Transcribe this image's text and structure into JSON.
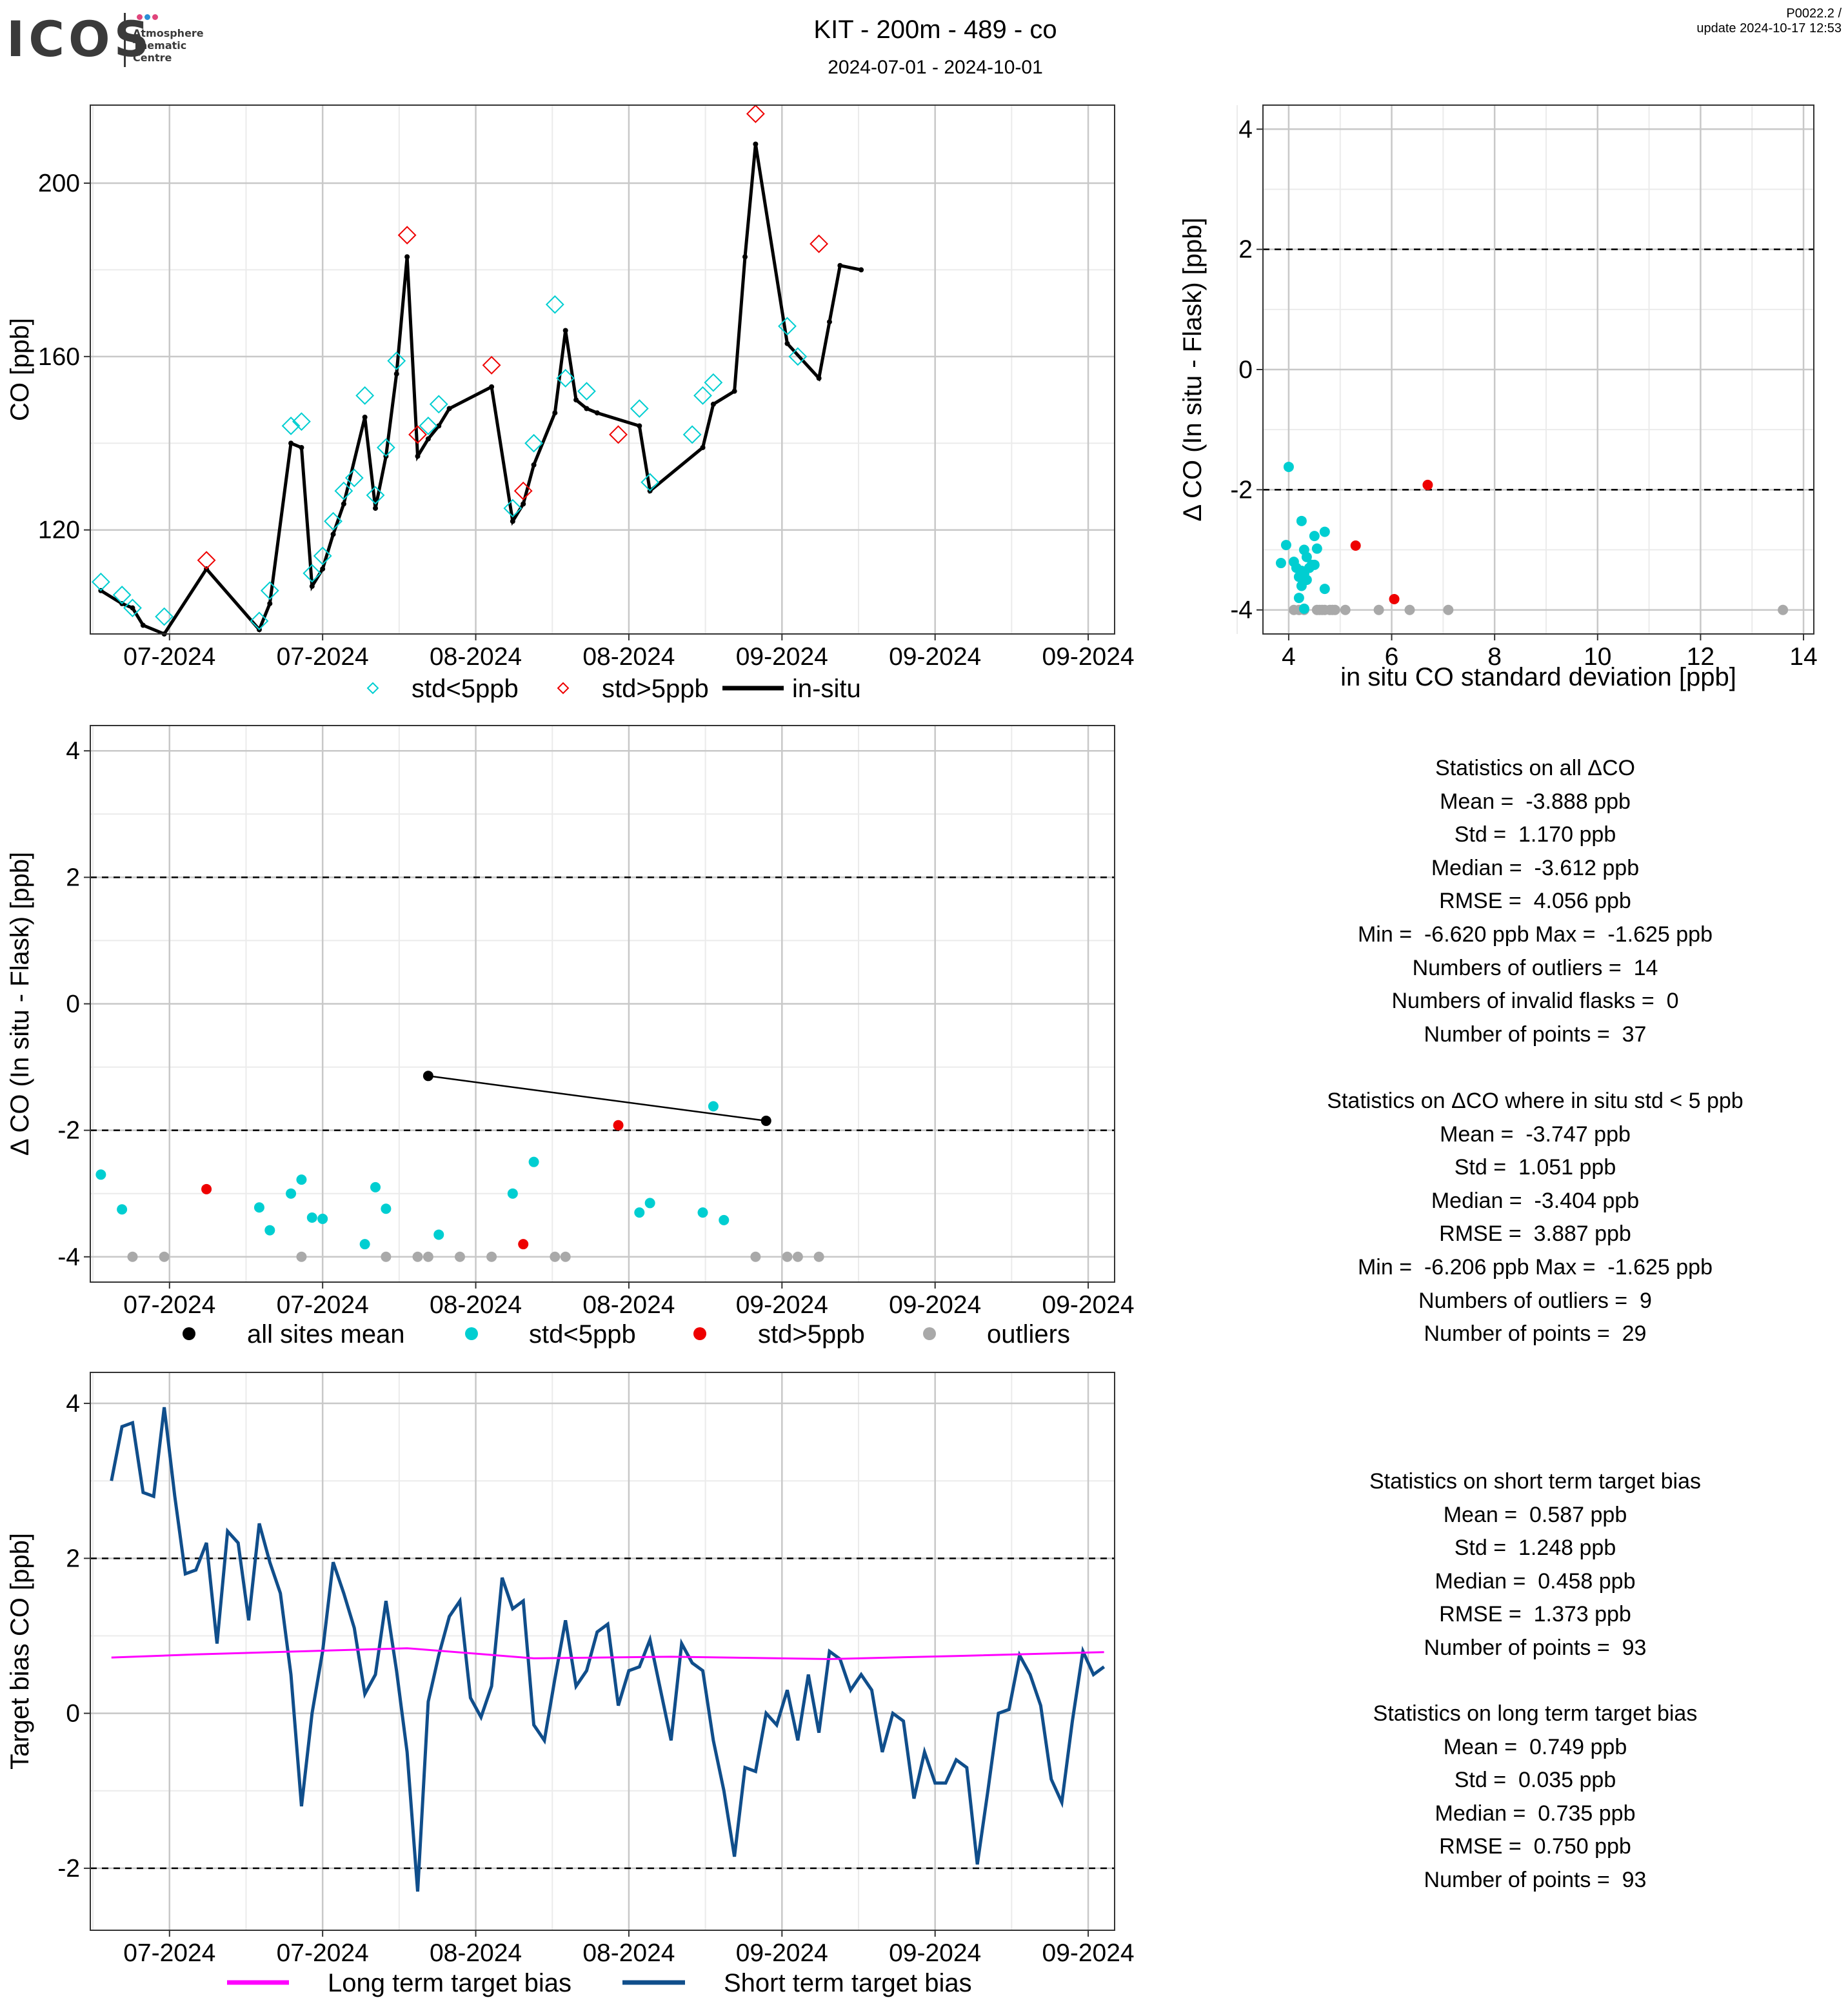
{
  "header": {
    "logo_text": "ICOS",
    "logo_subtitle": [
      "Atmosphere",
      "Thematic",
      "Centre"
    ],
    "title": "KIT - 200m - 489 - co",
    "subtitle": "2024-07-01 - 2024-10-01",
    "version": "P0022.2 /",
    "update": "update  2024-10-17 12:53"
  },
  "colors": {
    "cyan": "#00CED1",
    "red": "#EE0000",
    "grey": "#A9A9A9",
    "black": "#000000",
    "magenta": "#FF00FF",
    "navy": "#104E8B",
    "grid_major": "#c8c8c8",
    "grid_minor": "#ebebeb"
  },
  "chart_data": [
    {
      "id": "co_timeseries",
      "type": "line",
      "ylabel": "CO [ppb]",
      "x_ticks": [
        "07-2024",
        "07-2024",
        "08-2024",
        "08-2024",
        "09-2024",
        "09-2024",
        "09-2024"
      ],
      "x_tick_positions": [
        7.5,
        22,
        36.5,
        51,
        65.5,
        80,
        94.5
      ],
      "xlim": [
        0,
        97
      ],
      "ylim": [
        96,
        218
      ],
      "y_ticks": [
        120,
        160,
        200
      ],
      "legend": [
        "std<5ppb",
        "std>5ppb",
        "in-situ"
      ],
      "series": [
        {
          "name": "in-situ",
          "x": [
            1,
            3,
            4,
            5,
            7,
            11,
            16,
            17,
            19,
            20,
            21,
            22,
            23,
            24,
            26,
            27,
            28,
            29,
            30,
            31,
            32,
            33,
            34,
            38,
            40,
            41,
            42,
            44,
            45,
            46,
            47,
            48,
            52,
            53,
            58,
            59,
            61,
            62,
            63,
            66,
            69,
            70,
            71,
            73
          ],
          "y": [
            106,
            103,
            102,
            98,
            96,
            111,
            97,
            103,
            140,
            139,
            107,
            111,
            119,
            126,
            146,
            125,
            137,
            156,
            183,
            137,
            141,
            144,
            148,
            153,
            122,
            126,
            135,
            147,
            166,
            150,
            148,
            147,
            144,
            129,
            139,
            149,
            152,
            183,
            209,
            163,
            155,
            168,
            181,
            180
          ]
        },
        {
          "name": "std<5ppb",
          "x": [
            1,
            3,
            4,
            7,
            16,
            17,
            19,
            20,
            21,
            22,
            23,
            24,
            25,
            26,
            27,
            28,
            29,
            32,
            33,
            40,
            42,
            44,
            45,
            47,
            52,
            53,
            57,
            58,
            59,
            66,
            67
          ],
          "y": [
            108,
            105,
            102,
            100,
            99,
            106,
            144,
            145,
            110,
            114,
            122,
            129,
            132,
            151,
            128,
            139,
            159,
            144,
            149,
            125,
            140,
            172,
            155,
            152,
            148,
            131,
            142,
            151,
            154,
            167,
            160
          ]
        },
        {
          "name": "std>5ppb",
          "x": [
            11,
            30,
            31,
            38,
            41,
            50,
            63,
            69
          ],
          "y": [
            113,
            188,
            142,
            158,
            129,
            142,
            216,
            186
          ]
        }
      ]
    },
    {
      "id": "delta_vs_std_scatter",
      "type": "scatter",
      "xlabel": "in situ CO standard deviation [ppb]",
      "ylabel": "Δ CO (In situ - Flask) [ppb]",
      "xlim": [
        3.5,
        14.2
      ],
      "ylim": [
        -4.4,
        4.4
      ],
      "x_ticks": [
        4,
        6,
        8,
        10,
        12,
        14
      ],
      "y_ticks": [
        -4,
        -2,
        0,
        2,
        4
      ],
      "hlines": [
        -2,
        2
      ],
      "series": [
        {
          "name": "std<5ppb",
          "x": [
            4.0,
            4.25,
            4.5,
            4.7,
            3.95,
            4.55,
            4.3,
            4.1,
            4.35,
            4.45,
            3.85,
            4.15,
            4.25,
            4.3,
            4.4,
            4.5,
            4.2,
            4.35,
            4.7,
            4.25,
            4.2,
            4.3
          ],
          "y": [
            -1.62,
            -2.52,
            -2.77,
            -2.7,
            -2.92,
            -2.98,
            -3.0,
            -3.2,
            -3.12,
            -3.25,
            -3.22,
            -3.3,
            -3.35,
            -3.4,
            -3.3,
            -3.25,
            -3.45,
            -3.5,
            -3.65,
            -3.6,
            -3.8,
            -3.98
          ]
        },
        {
          "name": "std>5ppb",
          "x": [
            6.7,
            5.3,
            6.05
          ],
          "y": [
            -1.92,
            -2.93,
            -3.82
          ]
        },
        {
          "name": "outliers",
          "x": [
            4.1,
            4.2,
            4.3,
            4.55,
            4.6,
            4.65,
            4.7,
            4.8,
            4.85,
            4.9,
            5.1,
            5.75,
            6.35,
            7.1,
            13.6
          ],
          "y": [
            -4,
            -4,
            -4,
            -4,
            -4,
            -4,
            -4,
            -4,
            -4,
            -4,
            -4,
            -4,
            -4,
            -4,
            -4
          ]
        }
      ]
    },
    {
      "id": "delta_timeseries",
      "type": "scatter",
      "ylabel": "Δ CO (In situ - Flask) [ppb]",
      "x_ticks": [
        "07-2024",
        "07-2024",
        "08-2024",
        "08-2024",
        "09-2024",
        "09-2024",
        "09-2024"
      ],
      "x_tick_positions": [
        7.5,
        22,
        36.5,
        51,
        65.5,
        80,
        94.5
      ],
      "xlim": [
        0,
        97
      ],
      "ylim": [
        -4.4,
        4.4
      ],
      "y_ticks": [
        -4,
        -2,
        0,
        2,
        4
      ],
      "hlines": [
        -2,
        2
      ],
      "legend": [
        "all sites mean",
        "std<5ppb",
        "std>5ppb",
        "outliers"
      ],
      "series": [
        {
          "name": "all sites mean",
          "x": [
            32,
            64
          ],
          "y": [
            -1.14,
            -1.85
          ]
        },
        {
          "name": "std<5ppb",
          "x": [
            1,
            3,
            16,
            17,
            19,
            20,
            21,
            22,
            26,
            27,
            28,
            33,
            40,
            42,
            52,
            53,
            58,
            59,
            60
          ],
          "y": [
            -2.7,
            -3.25,
            -3.22,
            -3.58,
            -3.0,
            -2.78,
            -3.38,
            -3.4,
            -3.8,
            -2.9,
            -3.24,
            -3.65,
            -3.0,
            -2.5,
            -3.3,
            -3.15,
            -3.3,
            -1.62,
            -3.42
          ]
        },
        {
          "name": "std>5ppb",
          "x": [
            11,
            41,
            50
          ],
          "y": [
            -2.93,
            -3.8,
            -1.92
          ]
        },
        {
          "name": "outliers",
          "x": [
            4,
            7,
            20,
            28,
            31,
            32,
            35,
            38,
            44,
            45,
            63,
            66,
            67,
            69
          ],
          "y": [
            -4,
            -4,
            -4,
            -4,
            -4,
            -4,
            -4,
            -4,
            -4,
            -4,
            -4,
            -4,
            -4,
            -4
          ]
        }
      ]
    },
    {
      "id": "target_bias",
      "type": "line",
      "ylabel": "Target bias CO [ppb]",
      "x_ticks": [
        "07-2024",
        "07-2024",
        "08-2024",
        "08-2024",
        "09-2024",
        "09-2024",
        "09-2024"
      ],
      "x_tick_positions": [
        7.5,
        22,
        36.5,
        51,
        65.5,
        80,
        94.5
      ],
      "xlim": [
        0,
        97
      ],
      "ylim": [
        -2.8,
        4.4
      ],
      "y_ticks": [
        -2,
        0,
        2,
        4
      ],
      "hlines": [
        -2,
        2
      ],
      "legend": [
        "Long term target bias",
        "Short term target bias"
      ],
      "series": [
        {
          "name": "Long term target bias",
          "x": [
            2,
            10,
            20,
            30,
            42,
            55,
            70,
            82,
            96
          ],
          "y": [
            0.72,
            0.76,
            0.8,
            0.84,
            0.71,
            0.73,
            0.7,
            0.74,
            0.79
          ]
        },
        {
          "name": "Short term target bias",
          "x": [
            2,
            3,
            4,
            5,
            6,
            7,
            8,
            9,
            10,
            11,
            12,
            13,
            14,
            15,
            16,
            17,
            18,
            19,
            20,
            21,
            22,
            23,
            24,
            25,
            26,
            27,
            28,
            29,
            30,
            31,
            32,
            33,
            34,
            35,
            36,
            37,
            38,
            39,
            40,
            41,
            42,
            43,
            44,
            45,
            46,
            47,
            48,
            49,
            50,
            51,
            52,
            53,
            54,
            55,
            56,
            57,
            58,
            59,
            60,
            61,
            62,
            63,
            64,
            65,
            66,
            67,
            68,
            69,
            70,
            71,
            72,
            73,
            74,
            75,
            76,
            77,
            78,
            79,
            80,
            81,
            82,
            83,
            84,
            85,
            86,
            87,
            88,
            89,
            90,
            91,
            92,
            93,
            94,
            95,
            96
          ],
          "y": [
            3.0,
            3.7,
            3.75,
            2.85,
            2.8,
            3.95,
            2.8,
            1.8,
            1.85,
            2.2,
            0.9,
            2.35,
            2.2,
            1.2,
            2.45,
            1.95,
            1.55,
            0.5,
            -1.2,
            0.0,
            0.8,
            1.95,
            1.55,
            1.1,
            0.25,
            0.5,
            1.45,
            0.55,
            -0.5,
            -2.3,
            0.15,
            0.75,
            1.25,
            1.45,
            0.2,
            -0.05,
            0.35,
            1.75,
            1.35,
            1.45,
            -0.15,
            -0.35,
            0.45,
            1.2,
            0.35,
            0.55,
            1.05,
            1.15,
            0.1,
            0.55,
            0.6,
            0.95,
            0.3,
            -0.35,
            0.9,
            0.65,
            0.55,
            -0.35,
            -1.0,
            -1.85,
            -0.7,
            -0.75,
            0.0,
            -0.15,
            0.3,
            -0.35,
            0.5,
            -0.25,
            0.8,
            0.7,
            0.3,
            0.5,
            0.3,
            -0.5,
            0.0,
            -0.1,
            -1.1,
            -0.5,
            -0.9,
            -0.9,
            -0.6,
            -0.7,
            -1.95,
            -1.0,
            0.0,
            0.05,
            0.75,
            0.5,
            0.1,
            -0.85,
            -1.15,
            -0.1,
            0.8,
            0.5,
            0.6
          ]
        }
      ]
    }
  ],
  "stats": {
    "all": {
      "title": "Statistics on all ΔCO",
      "lines": [
        "Mean =  -3.888 ppb",
        "Std =  1.170 ppb",
        "Median =  -3.612 ppb",
        "RMSE =  4.056 ppb",
        "Min =  -6.620 ppb Max =  -1.625 ppb",
        "Numbers of outliers =  14",
        "Numbers of invalid flasks =  0",
        "Number of points =  37"
      ]
    },
    "std5": {
      "title": "Statistics on ΔCO where in situ std < 5 ppb",
      "lines": [
        "Mean =  -3.747 ppb",
        "Std =  1.051 ppb",
        "Median =  -3.404 ppb",
        "RMSE =  3.887 ppb",
        "Min =  -6.206 ppb Max =  -1.625 ppb",
        "Numbers of outliers =  9",
        "Number of points =  29"
      ]
    },
    "short": {
      "title": "Statistics on short term target bias",
      "lines": [
        "Mean =  0.587 ppb",
        "Std =  1.248 ppb",
        "Median =  0.458 ppb",
        "RMSE =  1.373 ppb",
        "Number of points =  93"
      ]
    },
    "long": {
      "title": "Statistics on long term target bias",
      "lines": [
        "Mean =  0.749 ppb",
        "Std =  0.035 ppb",
        "Median =  0.735 ppb",
        "RMSE =  0.750 ppb",
        "Number of points =  93"
      ]
    }
  }
}
